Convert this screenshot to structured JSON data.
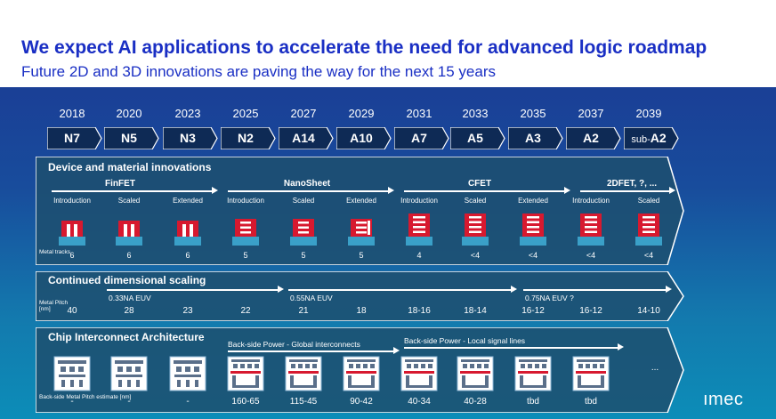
{
  "header": {
    "title": "We expect AI applications to accelerate the need for advanced logic roadmap",
    "subtitle": "Future 2D and 3D innovations are paving the way for the next 15 years"
  },
  "roadmap": {
    "years": [
      "2018",
      "2020",
      "2023",
      "2025",
      "2027",
      "2029",
      "2031",
      "2033",
      "2035",
      "2037",
      "2039"
    ],
    "nodes": [
      {
        "pre": "",
        "name": "N7"
      },
      {
        "pre": "",
        "name": "N5"
      },
      {
        "pre": "",
        "name": "N3"
      },
      {
        "pre": "",
        "name": "N2"
      },
      {
        "pre": "",
        "name": "A14"
      },
      {
        "pre": "",
        "name": "A10"
      },
      {
        "pre": "",
        "name": "A7"
      },
      {
        "pre": "",
        "name": "A5"
      },
      {
        "pre": "",
        "name": "A3"
      },
      {
        "pre": "",
        "name": "A2"
      },
      {
        "pre": "sub-",
        "name": "A2"
      }
    ]
  },
  "device": {
    "title": "Device and material innovations",
    "technologies": [
      "FinFET",
      "NanoSheet",
      "CFET",
      "2DFET, ?, ..."
    ],
    "stages": [
      "Introduction",
      "Scaled",
      "Extended",
      "Introduction",
      "Scaled",
      "Extended",
      "Introduction",
      "Scaled",
      "Extended",
      "Introduction",
      "Scaled"
    ],
    "metal_tracks_label": "Metal tracks",
    "metal_tracks": [
      "6",
      "6",
      "6",
      "5",
      "5",
      "5",
      "4",
      "<4",
      "<4",
      "<4",
      "<4"
    ]
  },
  "scaling": {
    "title": "Continued dimensional scaling",
    "lithography": [
      "0.33NA EUV",
      "0.55NA EUV",
      "0.75NA EUV ?"
    ],
    "pitch_label": "Metal Pitch [nm]",
    "metal_pitch": [
      "40",
      "28",
      "23",
      "22",
      "21",
      "18",
      "18-16",
      "18-14",
      "16-12",
      "16-12",
      "14-10"
    ]
  },
  "interconnect": {
    "title": "Chip Interconnect Architecture",
    "power_labels": [
      "Back-side Power - Global interconnects",
      "Back-side Power - Local signal lines"
    ],
    "pitch_label": "Back-side Metal Pitch estimate [nm]",
    "backside_pitch": [
      "-",
      "-",
      "-",
      "160-65",
      "115-45",
      "90-42",
      "40-34",
      "40-28",
      "tbd",
      "tbd"
    ],
    "more": "..."
  },
  "logo": {
    "text": "ımec"
  },
  "colors": {
    "title_blue": "#1a2fc4",
    "device_red": "#d7192f",
    "band_bg": "#1d4f6e"
  }
}
